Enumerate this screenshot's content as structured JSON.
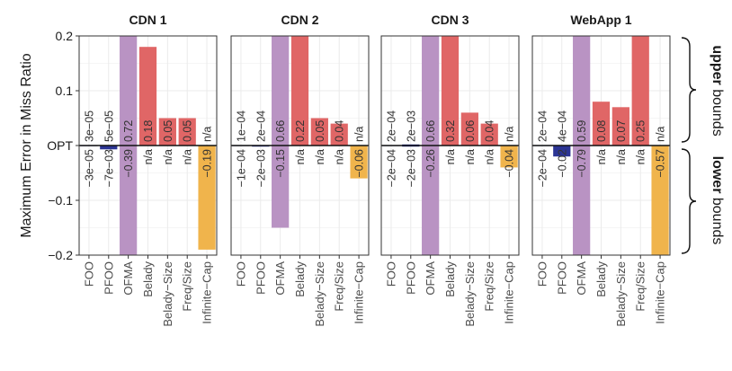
{
  "chart_data": {
    "type": "bar",
    "ylabel": "Maximum Error in Miss Ratio",
    "ylim": [
      -0.2,
      0.2
    ],
    "yticks": [
      {
        "value": 0.2,
        "label": "0.2"
      },
      {
        "value": 0.1,
        "label": "0.1"
      },
      {
        "value": 0.0,
        "label": "OPT"
      },
      {
        "value": -0.1,
        "label": "−0.1"
      },
      {
        "value": -0.2,
        "label": "−0.2"
      }
    ],
    "categories": [
      "FOO",
      "PFOO",
      "OFMA",
      "Belady",
      "Belady−Size",
      "Freq/Size",
      "Infinite−Cap"
    ],
    "colors": {
      "FOO": "#1f2d8a",
      "PFOO": "#2c3594",
      "OFMA": "#b993c3",
      "Belady": "#e06666",
      "Belady−Size": "#e06666",
      "Freq/Size": "#e06666",
      "Infinite−Cap": "#f0b44c"
    },
    "annotations": {
      "upper_bold": "upper",
      "upper_rest": " bounds",
      "lower_bold": "lower",
      "lower_rest": " bounds"
    },
    "panels": [
      {
        "title": "CDN 1",
        "upper": [
          {
            "value": 3e-05,
            "label": "3e−05"
          },
          {
            "value": 5e-05,
            "label": "5e−05"
          },
          {
            "value": 0.72,
            "label": "0.72"
          },
          {
            "value": 0.18,
            "label": "0.18"
          },
          {
            "value": 0.05,
            "label": "0.05"
          },
          {
            "value": 0.05,
            "label": "0.05"
          },
          {
            "value": null,
            "label": "n/a"
          }
        ],
        "lower": [
          {
            "value": -3e-05,
            "label": "−3e−05"
          },
          {
            "value": -0.007,
            "label": "−7e−03"
          },
          {
            "value": -0.39,
            "label": "−0.39"
          },
          {
            "value": null,
            "label": "n/a"
          },
          {
            "value": null,
            "label": "n/a"
          },
          {
            "value": null,
            "label": "n/a"
          },
          {
            "value": -0.19,
            "label": "−0.19"
          }
        ]
      },
      {
        "title": "CDN 2",
        "upper": [
          {
            "value": 0.0001,
            "label": "1e−04"
          },
          {
            "value": 0.0002,
            "label": "2e−04"
          },
          {
            "value": 0.66,
            "label": "0.66"
          },
          {
            "value": 0.22,
            "label": "0.22"
          },
          {
            "value": 0.05,
            "label": "0.05"
          },
          {
            "value": 0.04,
            "label": "0.04"
          },
          {
            "value": null,
            "label": "n/a"
          }
        ],
        "lower": [
          {
            "value": -0.0001,
            "label": "−1e−04"
          },
          {
            "value": -0.002,
            "label": "−2e−03"
          },
          {
            "value": -0.15,
            "label": "−0.15"
          },
          {
            "value": null,
            "label": "n/a"
          },
          {
            "value": null,
            "label": "n/a"
          },
          {
            "value": null,
            "label": "n/a"
          },
          {
            "value": -0.06,
            "label": "−0.06"
          }
        ]
      },
      {
        "title": "CDN 3",
        "upper": [
          {
            "value": 0.0002,
            "label": "2e−04"
          },
          {
            "value": 0.002,
            "label": "2e−03"
          },
          {
            "value": 0.66,
            "label": "0.66"
          },
          {
            "value": 0.32,
            "label": "0.32"
          },
          {
            "value": 0.06,
            "label": "0.06"
          },
          {
            "value": 0.04,
            "label": "0.04"
          },
          {
            "value": null,
            "label": "n/a"
          }
        ],
        "lower": [
          {
            "value": -0.0002,
            "label": "−2e−04"
          },
          {
            "value": -0.002,
            "label": "−2e−03"
          },
          {
            "value": -0.26,
            "label": "−0.26"
          },
          {
            "value": null,
            "label": "n/a"
          },
          {
            "value": null,
            "label": "n/a"
          },
          {
            "value": null,
            "label": "n/a"
          },
          {
            "value": -0.04,
            "label": "−0.04"
          }
        ]
      },
      {
        "title": "WebApp 1",
        "upper": [
          {
            "value": 0.0002,
            "label": "2e−04"
          },
          {
            "value": 0.0004,
            "label": "4e−04"
          },
          {
            "value": 0.59,
            "label": "0.59"
          },
          {
            "value": 0.08,
            "label": "0.08"
          },
          {
            "value": 0.07,
            "label": "0.07"
          },
          {
            "value": 0.25,
            "label": "0.25"
          },
          {
            "value": null,
            "label": "n/a"
          }
        ],
        "lower": [
          {
            "value": -0.0002,
            "label": "−2e−04"
          },
          {
            "value": -0.02,
            "label": "−0.02"
          },
          {
            "value": -0.79,
            "label": "−0.79"
          },
          {
            "value": null,
            "label": "n/a"
          },
          {
            "value": null,
            "label": "n/a"
          },
          {
            "value": null,
            "label": "n/a"
          },
          {
            "value": -0.57,
            "label": "−0.57"
          }
        ]
      }
    ]
  }
}
